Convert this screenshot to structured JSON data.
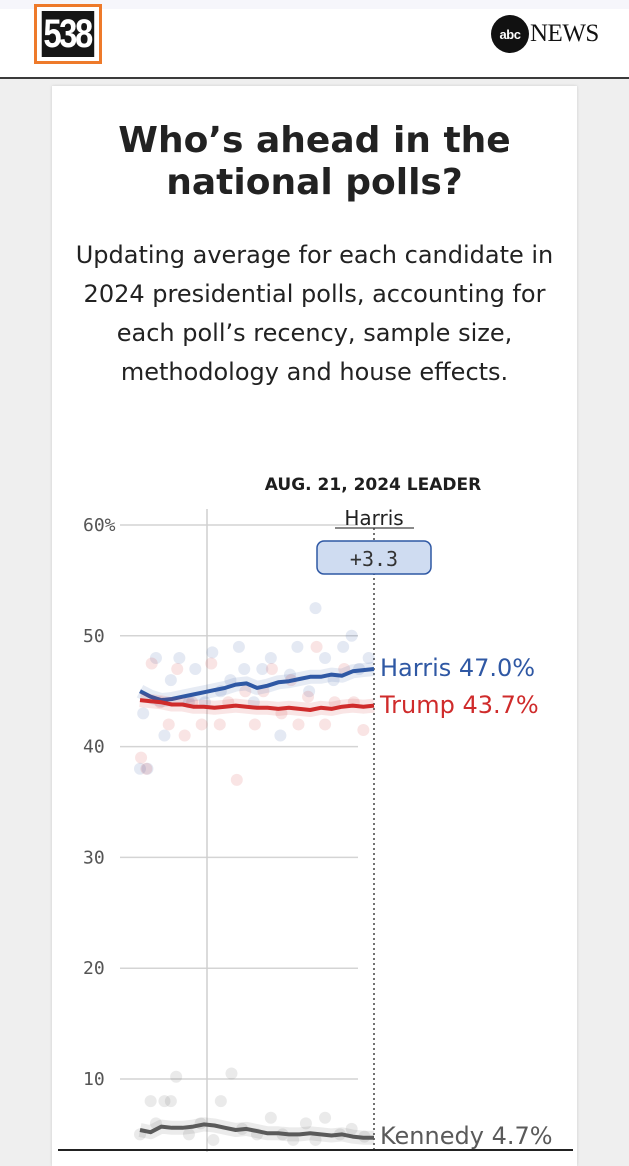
{
  "header": {
    "site_logo": "538",
    "partner_logo_ball": "abc",
    "partner_logo_word": "NEWS"
  },
  "chart_data": {
    "type": "line",
    "title": "Who’s ahead in the national polls?",
    "subtitle": "Updating average for each candidate in 2024 presidential polls, accounting for each poll’s recency, sample size, methodology and house effects.",
    "leader_heading": "AUG. 21, 2024 LEADER",
    "leader_name": "Harris",
    "leader_margin": "+3.3",
    "y_ticks": [
      {
        "value": 60,
        "label": "60%"
      },
      {
        "value": 50,
        "label": "50"
      },
      {
        "value": 40,
        "label": "40"
      },
      {
        "value": 30,
        "label": "30"
      },
      {
        "value": 20,
        "label": "20"
      },
      {
        "value": 10,
        "label": "10"
      }
    ],
    "ylim": [
      4.5,
      60
    ],
    "series": [
      {
        "name": "Harris",
        "end_label": "Harris 47.0%",
        "color": "#2f58a4",
        "values": [
          45.0,
          44.5,
          44.2,
          44.3,
          44.5,
          44.7,
          44.9,
          45.1,
          45.3,
          45.6,
          45.7,
          45.3,
          45.5,
          45.8,
          45.9,
          46.1,
          46.3,
          46.3,
          46.5,
          46.4,
          46.8,
          46.9,
          47.0
        ]
      },
      {
        "name": "Trump",
        "end_label": "Trump 43.7%",
        "color": "#cf2b2b",
        "values": [
          44.2,
          44.1,
          44.0,
          43.8,
          43.8,
          43.6,
          43.6,
          43.5,
          43.6,
          43.7,
          43.6,
          43.5,
          43.5,
          43.4,
          43.5,
          43.4,
          43.3,
          43.5,
          43.4,
          43.6,
          43.7,
          43.6,
          43.7
        ]
      },
      {
        "name": "Kennedy",
        "end_label": "Kennedy 4.7%",
        "color": "#5a5a5a",
        "values": [
          5.4,
          5.2,
          5.7,
          5.6,
          5.6,
          5.7,
          5.9,
          5.8,
          5.6,
          5.4,
          5.5,
          5.3,
          5.1,
          5.1,
          5.0,
          5.0,
          5.1,
          5.0,
          4.9,
          5.0,
          4.8,
          4.7,
          4.7
        ]
      }
    ],
    "poll_points": {
      "Harris": [
        [
          0.0,
          38.0
        ],
        [
          0.3,
          43.0
        ],
        [
          0.7,
          38.0
        ],
        [
          1.5,
          48.0
        ],
        [
          2.3,
          41.0
        ],
        [
          2.9,
          46.0
        ],
        [
          3.7,
          48.0
        ],
        [
          4.6,
          44.0
        ],
        [
          5.2,
          47.0
        ],
        [
          6.1,
          44.0
        ],
        [
          6.8,
          48.5
        ],
        [
          7.6,
          45.0
        ],
        [
          8.5,
          46.0
        ],
        [
          9.3,
          49.0
        ],
        [
          9.8,
          47.0
        ],
        [
          10.7,
          44.0
        ],
        [
          11.5,
          47.0
        ],
        [
          12.3,
          48.0
        ],
        [
          13.2,
          41.0
        ],
        [
          14.1,
          46.5
        ],
        [
          14.8,
          49.0
        ],
        [
          15.9,
          45.0
        ],
        [
          16.5,
          52.5
        ],
        [
          17.4,
          48.0
        ],
        [
          18.2,
          46.0
        ],
        [
          19.1,
          49.0
        ],
        [
          19.9,
          50.0
        ],
        [
          20.6,
          47.0
        ],
        [
          21.5,
          48.0
        ]
      ],
      "Trump": [
        [
          0.1,
          39.0
        ],
        [
          0.6,
          38.0
        ],
        [
          1.1,
          47.5
        ],
        [
          1.9,
          44.0
        ],
        [
          2.7,
          42.0
        ],
        [
          3.5,
          47.0
        ],
        [
          4.2,
          41.0
        ],
        [
          4.9,
          44.0
        ],
        [
          5.8,
          42.0
        ],
        [
          6.7,
          47.5
        ],
        [
          7.5,
          42.0
        ],
        [
          8.3,
          44.0
        ],
        [
          9.1,
          37.0
        ],
        [
          9.9,
          45.0
        ],
        [
          10.8,
          42.0
        ],
        [
          11.6,
          45.0
        ],
        [
          12.4,
          47.0
        ],
        [
          13.3,
          43.0
        ],
        [
          14.2,
          46.0
        ],
        [
          14.9,
          42.0
        ],
        [
          15.8,
          44.5
        ],
        [
          16.6,
          49.0
        ],
        [
          17.4,
          42.0
        ],
        [
          18.3,
          44.0
        ],
        [
          19.2,
          47.0
        ],
        [
          20.1,
          44.0
        ],
        [
          21.0,
          41.5
        ]
      ],
      "Kennedy": [
        [
          0.0,
          5.0
        ],
        [
          1.0,
          8.0
        ],
        [
          1.5,
          6.0
        ],
        [
          2.3,
          8.0
        ],
        [
          2.9,
          8.0
        ],
        [
          3.4,
          10.2
        ],
        [
          4.6,
          5.0
        ],
        [
          5.7,
          6.0
        ],
        [
          6.9,
          4.5
        ],
        [
          7.6,
          8.0
        ],
        [
          8.6,
          10.5
        ],
        [
          9.6,
          5.5
        ],
        [
          11.0,
          5.0
        ],
        [
          12.3,
          6.5
        ],
        [
          13.4,
          5.0
        ],
        [
          14.4,
          4.5
        ],
        [
          15.6,
          6.0
        ],
        [
          16.5,
          4.5
        ],
        [
          17.4,
          6.5
        ],
        [
          18.8,
          5.0
        ],
        [
          19.9,
          5.5
        ],
        [
          21.1,
          4.8
        ]
      ]
    },
    "grid": true
  }
}
